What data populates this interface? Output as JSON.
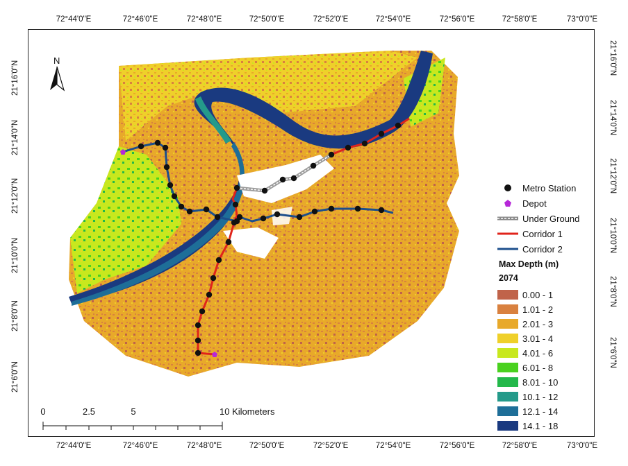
{
  "graticule": {
    "top_labels": [
      "72°44'0\"E",
      "72°46'0\"E",
      "72°48'0\"E",
      "72°50'0\"E",
      "72°52'0\"E",
      "72°54'0\"E",
      "72°56'0\"E",
      "72°58'0\"E",
      "73°0'0\"E"
    ],
    "bottom_labels": [
      "72°44'0\"E",
      "72°46'0\"E",
      "72°48'0\"E",
      "72°50'0\"E",
      "72°52'0\"E",
      "72°54'0\"E",
      "72°56'0\"E",
      "72°58'0\"E",
      "73°0'0\"E"
    ],
    "left_labels": [
      "21°16'0\"N",
      "21°14'0\"N",
      "21°12'0\"N",
      "21°10'0\"N",
      "21°8'0\"N",
      "21°6'0\"N"
    ],
    "right_labels": [
      "21°16'0\"N",
      "21°14'0\"N",
      "21°12'0\"N",
      "21°10'0\"N",
      "21°8'0\"N",
      "21°6'0\"N"
    ]
  },
  "north_arrow": {
    "label": "N",
    "icon": "north-arrow-icon"
  },
  "legend": {
    "metro_station": "Metro Station",
    "depot": "Depot",
    "under_ground": "Under Ground",
    "corridor_1": "Corridor 1",
    "corridor_2": "Corridor 2",
    "title": "Max Depth (m)",
    "subtitle": "2074",
    "classes": [
      {
        "label": "0.00 - 1",
        "color": "#c0634a"
      },
      {
        "label": "1.01 - 2",
        "color": "#d9813f"
      },
      {
        "label": "2.01 - 3",
        "color": "#e8a92a"
      },
      {
        "label": "3.01 - 4",
        "color": "#efd02a"
      },
      {
        "label": "4.01 - 6",
        "color": "#c8e81e"
      },
      {
        "label": "6.01 - 8",
        "color": "#49d11f"
      },
      {
        "label": "8.01 - 10",
        "color": "#23b84a"
      },
      {
        "label": "10.1 - 12",
        "color": "#249a8a"
      },
      {
        "label": "12.1 - 14",
        "color": "#1e6e98"
      },
      {
        "label": "14.1 - 18",
        "color": "#1a3a80"
      }
    ]
  },
  "colors": {
    "corridor_1": "#e0241b",
    "corridor_2": "#1d4f8c",
    "under_ground": "#9c9c9c",
    "station": "#111111",
    "depot": "#b627d8"
  },
  "scalebar": {
    "labels": [
      "0",
      "2.5",
      "5",
      "10 Kilometers"
    ]
  }
}
